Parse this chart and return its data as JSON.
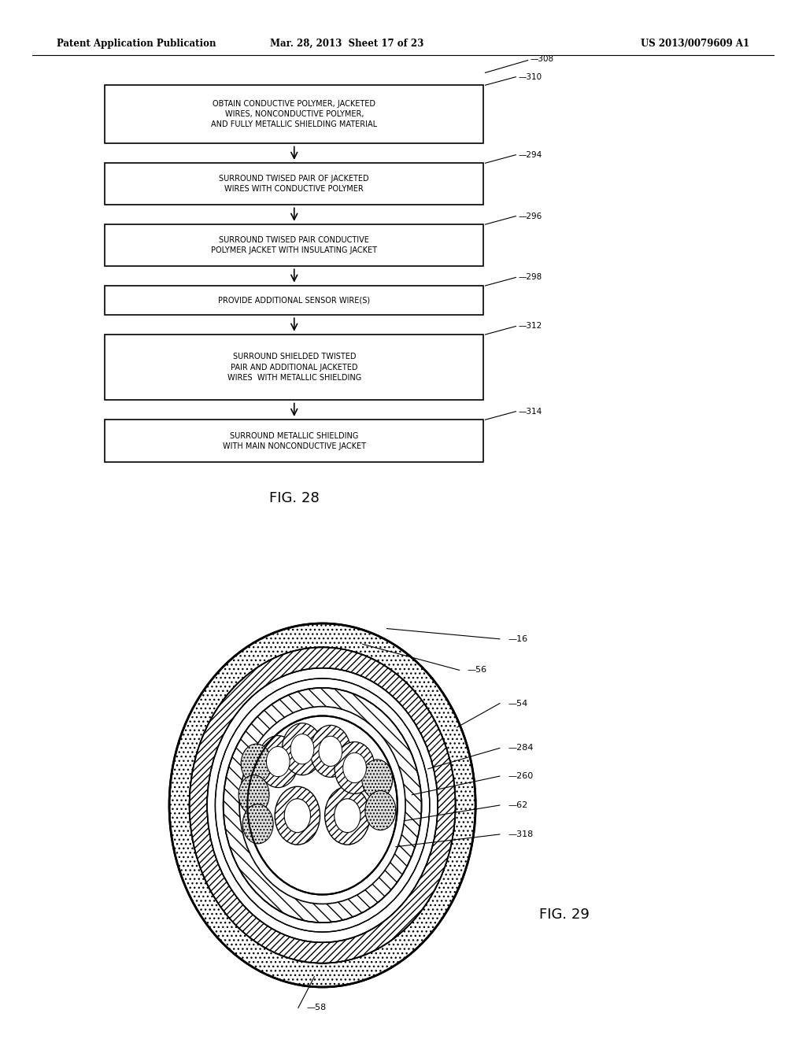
{
  "bg_color": "#ffffff",
  "header_left": "Patent Application Publication",
  "header_mid": "Mar. 28, 2013  Sheet 17 of 23",
  "header_right": "US 2013/0079609 A1",
  "fig28_label": "FIG. 28",
  "fig29_label": "FIG. 29",
  "flowchart": {
    "boxes": [
      {
        "id": "310",
        "text": "OBTAIN CONDUCTIVE POLYMER, JACKETED\nWIRES, NONCONDUCTIVE POLYMER,\nAND FULLY METALLIC SHIELDING MATERIAL"
      },
      {
        "id": "294",
        "text": "SURROUND TWISED PAIR OF JACKETED\nWIRES WITH CONDUCTIVE POLYMER"
      },
      {
        "id": "296",
        "text": "SURROUND TWISED PAIR CONDUCTIVE\nPOLYMER JACKET WITH INSULATING JACKET"
      },
      {
        "id": "298",
        "text": "PROVIDE ADDITIONAL SENSOR WIRE(S)"
      },
      {
        "id": "312",
        "text": "SURROUND SHIELDED TWISTED\nPAIR AND ADDITIONAL JACKETED\nWIRES  WITH METALLIC SHIELDING"
      },
      {
        "id": "314",
        "text": "SURROUND METALLIC SHIELDING\nWITH MAIN NONCONDUCTIVE JACKET"
      }
    ]
  }
}
